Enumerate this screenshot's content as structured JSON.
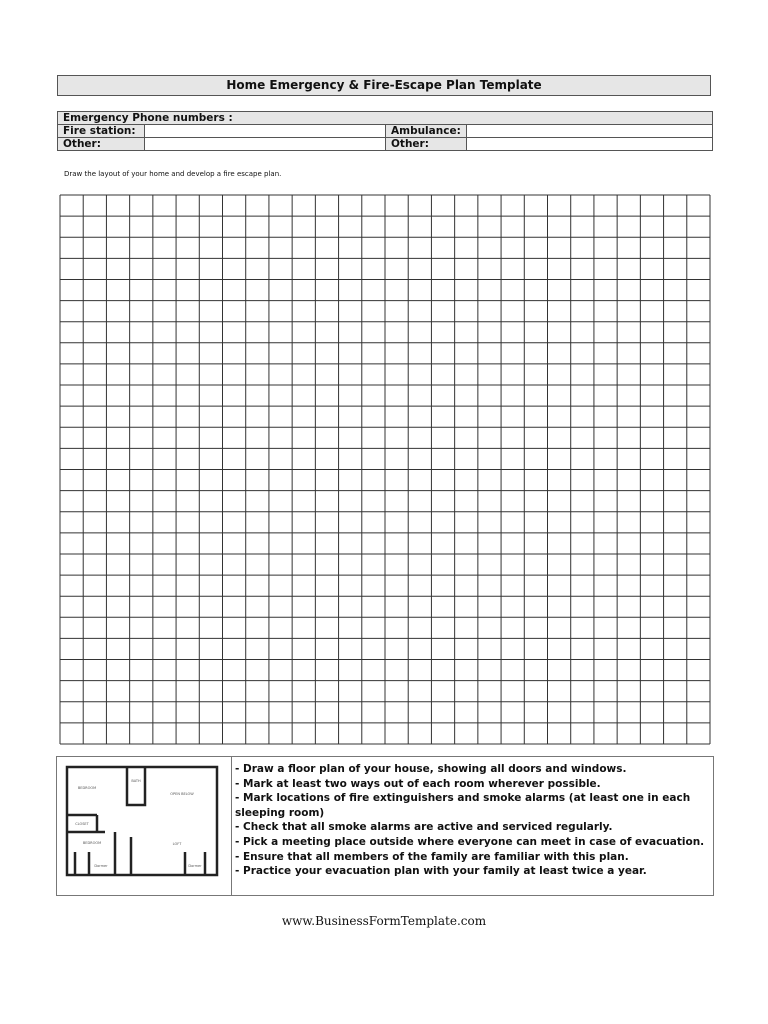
{
  "title": "Home Emergency & Fire-Escape Plan Template",
  "phones": {
    "header": "Emergency Phone numbers :",
    "fire_station": "Fire station:",
    "ambulance": "Ambulance:",
    "other1": "Other:",
    "other2": "Other:"
  },
  "instruction": "Draw the layout of your home and develop a fire escape plan.",
  "grid": {
    "columns": 28,
    "rows": 26
  },
  "floor_plan": {
    "labels": [
      "BEDROOM",
      "BATH",
      "OPEN BELOW",
      "CLOSET",
      "BEDROOM",
      "LOFT",
      "Dormer",
      "Dormer"
    ]
  },
  "notes": [
    "- Draw a floor plan of your house, showing all doors and windows.",
    "- Mark at least two ways out of each room wherever possible.",
    "- Mark locations of fire extinguishers and smoke alarms (at least one in each sleeping room)",
    "- Check that all smoke alarms are active and serviced regularly.",
    "- Pick a meeting place outside where everyone can meet in case of evacuation.",
    "- Ensure that all members of the family are familiar with this plan.",
    "- Practice your evacuation plan with your family at least twice a year."
  ],
  "footer": "www.BusinessFormTemplate.com"
}
